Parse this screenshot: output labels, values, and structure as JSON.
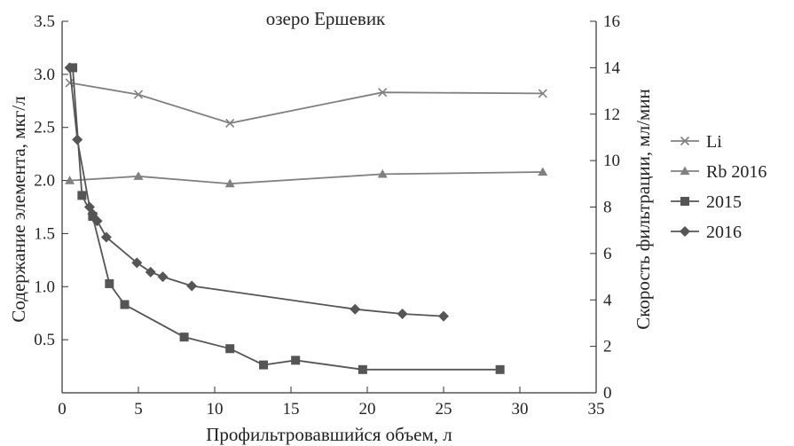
{
  "chart_data": {
    "type": "line",
    "title": "озеро Ершевик",
    "xlabel": "Профильтровавшийся объем, л",
    "ylabel": "Содержание элемента, мкг/л",
    "y2label": "Скорость фильтрации, мл/мин",
    "xlim": [
      0,
      35
    ],
    "ylim": [
      0,
      3.5
    ],
    "y2lim": [
      0,
      16
    ],
    "xticks": [
      0,
      5,
      10,
      15,
      20,
      25,
      30,
      35
    ],
    "yticks": [
      "",
      "0.5",
      "1.0",
      "1.5",
      "2.0",
      "2.5",
      "3.0",
      "3.5"
    ],
    "y2ticks": [
      0,
      2,
      4,
      6,
      8,
      10,
      12,
      14,
      16
    ],
    "legend_position": "right",
    "grid": false,
    "series": [
      {
        "name": "Li",
        "axis": "left",
        "marker": "x",
        "color": "#808080",
        "x": [
          0.5,
          5,
          11,
          21,
          31.5
        ],
        "y": [
          2.92,
          2.81,
          2.54,
          2.83,
          2.82
        ]
      },
      {
        "name": "Rb 2016",
        "axis": "left",
        "marker": "triangle",
        "color": "#808080",
        "x": [
          0.5,
          5,
          11,
          21,
          31.5
        ],
        "y": [
          2.0,
          2.04,
          1.97,
          2.06,
          2.08
        ]
      },
      {
        "name": "2015",
        "axis": "right",
        "marker": "square",
        "color": "#555555",
        "x": [
          0.7,
          1.3,
          2.0,
          3.1,
          4.1,
          8.0,
          11.0,
          13.2,
          15.3,
          19.7,
          28.7
        ],
        "y": [
          14.0,
          8.5,
          7.6,
          4.7,
          3.8,
          2.4,
          1.9,
          1.2,
          1.4,
          1.0,
          1.0
        ]
      },
      {
        "name": "2016",
        "axis": "right",
        "marker": "diamond",
        "color": "#555555",
        "x": [
          0.5,
          1.0,
          1.8,
          2.0,
          2.3,
          2.9,
          4.9,
          5.8,
          6.6,
          8.5,
          19.2,
          22.3,
          25.0
        ],
        "y": [
          14.0,
          10.9,
          8.0,
          7.7,
          7.4,
          6.7,
          5.6,
          5.2,
          5.0,
          4.6,
          3.6,
          3.4,
          3.3
        ]
      }
    ]
  }
}
